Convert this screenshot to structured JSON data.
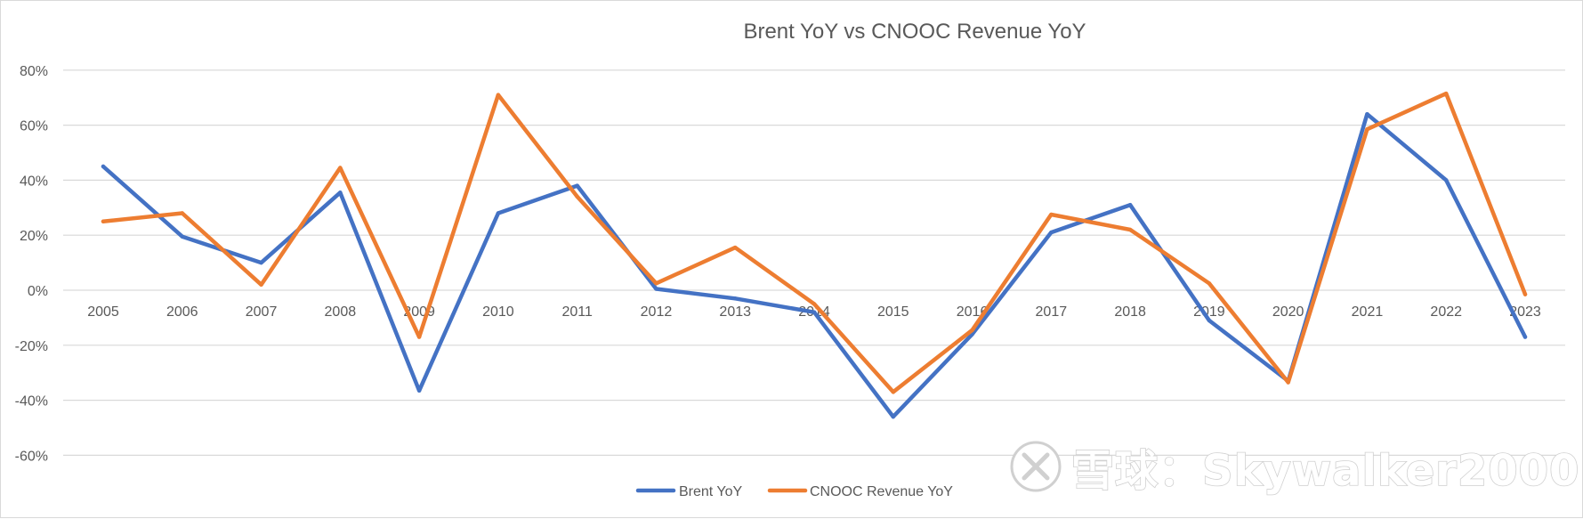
{
  "chart_data": {
    "type": "line",
    "title": "Brent YoY vs CNOOC Revenue YoY",
    "xlabel": "",
    "ylabel": "",
    "categories": [
      "2005",
      "2006",
      "2007",
      "2008",
      "2009",
      "2010",
      "2011",
      "2012",
      "2013",
      "2014",
      "2015",
      "2016",
      "2017",
      "2018",
      "2019",
      "2020",
      "2021",
      "2022",
      "2023"
    ],
    "yticks": [
      80,
      60,
      40,
      20,
      0,
      -20,
      -40,
      -60
    ],
    "ytick_labels": [
      "80%",
      "60%",
      "40%",
      "20%",
      "0%",
      "-20%",
      "-40%",
      "-60%"
    ],
    "ylim": [
      -70,
      80
    ],
    "grid": true,
    "legend_position": "bottom-center",
    "series": [
      {
        "name": "Brent YoY",
        "color": "#4472c4",
        "values": [
          45,
          19.5,
          10,
          35.5,
          -36.5,
          28,
          38,
          0.5,
          -3,
          -8,
          -46,
          -16,
          21,
          31,
          -11,
          -33,
          64,
          40,
          -17
        ]
      },
      {
        "name": "CNOOC Revenue YoY",
        "color": "#ed7d31",
        "values": [
          25,
          28,
          2,
          44.5,
          -17,
          71,
          34,
          2.5,
          15.5,
          -5,
          -37,
          -14.5,
          27.5,
          22,
          2.5,
          -33.5,
          58.5,
          71.5,
          -1.5
        ]
      }
    ]
  },
  "watermark": {
    "text": "雪球：Skywalker2000"
  }
}
